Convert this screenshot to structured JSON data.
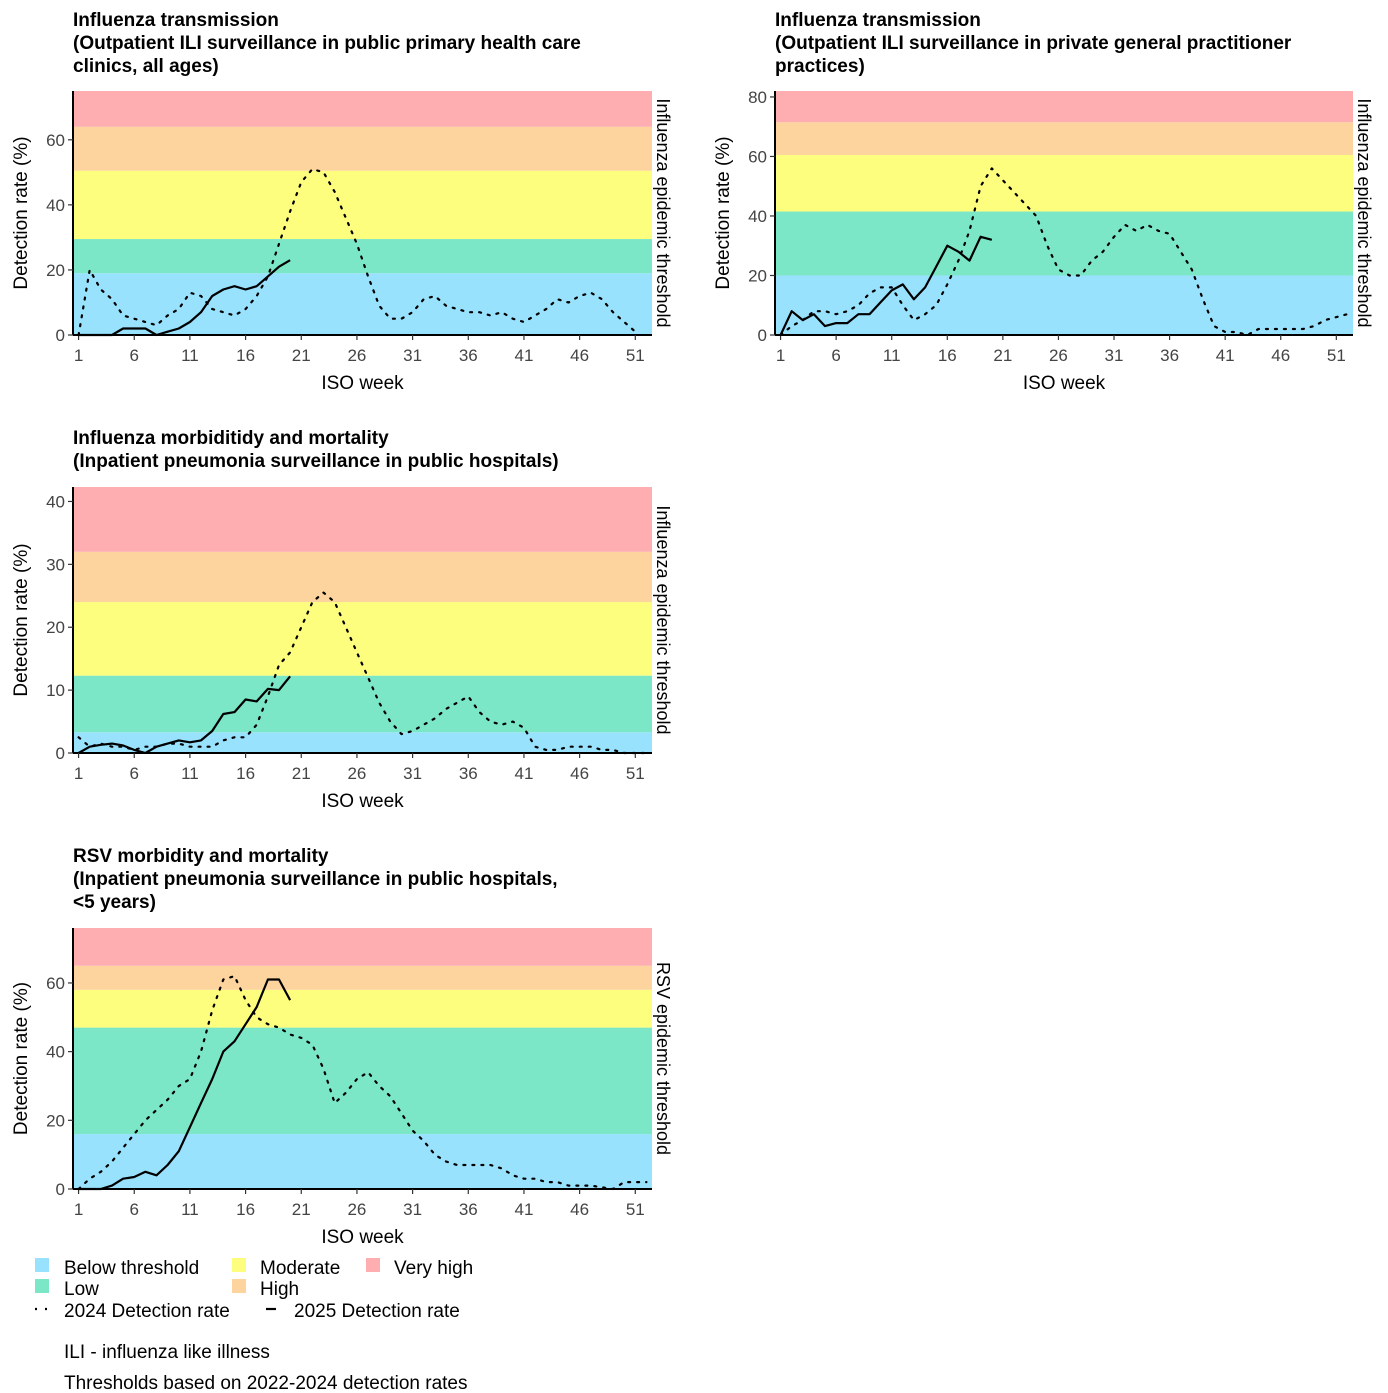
{
  "colors": {
    "below": "#99e2fe",
    "low": "#7ce7c7",
    "moderate": "#fefe7e",
    "high": "#fed49e",
    "very_high": "#fead b0"
  },
  "legend": {
    "below": "Below threshold",
    "low": "Low",
    "moderate": "Moderate",
    "high": "High",
    "very_high": "Very high",
    "s2024": "2024 Detection rate",
    "s2025": "2025 Detection rate"
  },
  "footnotes": {
    "ili": "ILI - influenza like illness",
    "thresholds": "Thresholds based on 2022-2024 detection rates"
  },
  "chart_data": [
    {
      "type": "line",
      "title_lines": [
        "Influenza transmission",
        "(Outpatient ILI surveillance in public primary health care",
        "clinics, all ages)"
      ],
      "xlabel": "ISO week",
      "ylabel": "Detection rate (%)",
      "side_label": "Influenza epidemic threshold",
      "xlim": [
        0.5,
        52.5
      ],
      "ylim": [
        0,
        75
      ],
      "x_ticks": [
        1,
        6,
        11,
        16,
        21,
        26,
        31,
        36,
        41,
        46,
        51
      ],
      "y_ticks": [
        0,
        20,
        40,
        60
      ],
      "bands": [
        0,
        19,
        29.5,
        50.5,
        64,
        75
      ],
      "series": [
        {
          "name": "2024 Detection rate",
          "style": "dotted",
          "x": [
            1,
            2,
            3,
            4,
            5,
            6,
            7,
            8,
            9,
            10,
            11,
            12,
            13,
            14,
            15,
            16,
            17,
            18,
            19,
            20,
            21,
            22,
            23,
            24,
            25,
            26,
            27,
            28,
            29,
            30,
            31,
            32,
            33,
            34,
            35,
            36,
            37,
            38,
            39,
            40,
            41,
            42,
            43,
            44,
            45,
            46,
            47,
            48,
            49,
            50,
            51
          ],
          "y": [
            0,
            20,
            14,
            11,
            6,
            5,
            4,
            3,
            6,
            8,
            13,
            12,
            8,
            7,
            6,
            8,
            12,
            18,
            28,
            38,
            47,
            51,
            50,
            44,
            36,
            28,
            18,
            9,
            5,
            5,
            7,
            11,
            12,
            9,
            8,
            7,
            7,
            6,
            7,
            5,
            4,
            6,
            8,
            11,
            10,
            12,
            13,
            11,
            7,
            4,
            1
          ]
        },
        {
          "name": "2025 Detection rate",
          "style": "solid",
          "x": [
            1,
            2,
            3,
            4,
            5,
            6,
            7,
            8,
            9,
            10,
            11,
            12,
            13,
            14,
            15,
            16,
            17,
            18,
            19,
            20
          ],
          "y": [
            0,
            0,
            0,
            0,
            2,
            2,
            2,
            0,
            1,
            2,
            4,
            7,
            12,
            14,
            15,
            14,
            15,
            18,
            21,
            23
          ]
        }
      ]
    },
    {
      "type": "line",
      "title_lines": [
        "Influenza transmission",
        "(Outpatient ILI surveillance in private general practitioner",
        "practices)"
      ],
      "xlabel": "ISO week",
      "ylabel": "Detection rate (%)",
      "side_label": "Influenza epidemic threshold",
      "xlim": [
        0.5,
        52.5
      ],
      "ylim": [
        0,
        82
      ],
      "x_ticks": [
        1,
        6,
        11,
        16,
        21,
        26,
        31,
        36,
        41,
        46,
        51
      ],
      "y_ticks": [
        0,
        20,
        40,
        60,
        80
      ],
      "bands": [
        0,
        20,
        41.5,
        60.5,
        71.5,
        82
      ],
      "series": [
        {
          "name": "2024 Detection rate",
          "style": "dotted",
          "x": [
            1,
            2,
            3,
            4,
            5,
            6,
            7,
            8,
            9,
            10,
            11,
            12,
            13,
            14,
            15,
            16,
            17,
            18,
            19,
            20,
            21,
            22,
            23,
            24,
            25,
            26,
            27,
            28,
            29,
            30,
            31,
            32,
            33,
            34,
            35,
            36,
            37,
            38,
            39,
            40,
            41,
            42,
            43,
            44,
            45,
            46,
            47,
            48,
            49,
            50,
            51,
            52
          ],
          "y": [
            0,
            3,
            5,
            8,
            8,
            7,
            8,
            10,
            14,
            16,
            16,
            10,
            5,
            7,
            10,
            17,
            25,
            35,
            50,
            56,
            52,
            48,
            44,
            40,
            30,
            22,
            20,
            20,
            25,
            28,
            33,
            37,
            35,
            37,
            35,
            34,
            28,
            22,
            12,
            3,
            1,
            1,
            0,
            2,
            2,
            2,
            2,
            2,
            3,
            5,
            6,
            7
          ]
        },
        {
          "name": "2025 Detection rate",
          "style": "solid",
          "x": [
            1,
            2,
            3,
            4,
            5,
            6,
            7,
            8,
            9,
            10,
            11,
            12,
            13,
            14,
            15,
            16,
            17,
            18,
            19,
            20
          ],
          "y": [
            0,
            8,
            5,
            7,
            3,
            4,
            4,
            7,
            7,
            11,
            15,
            17,
            12,
            16,
            23,
            30,
            28,
            25,
            33,
            32
          ]
        }
      ]
    },
    {
      "type": "line",
      "title_lines": [
        "Influenza morbiditidy and mortality",
        "(Inpatient pneumonia surveillance in public hospitals)"
      ],
      "xlabel": "ISO week",
      "ylabel": "Detection rate (%)",
      "side_label": "Influenza epidemic threshold",
      "xlim": [
        0.5,
        52.5
      ],
      "ylim": [
        0,
        42.3
      ],
      "x_ticks": [
        1,
        6,
        11,
        16,
        21,
        26,
        31,
        36,
        41,
        46,
        51
      ],
      "y_ticks": [
        0,
        10,
        20,
        30,
        40
      ],
      "bands": [
        0,
        3.3,
        12.3,
        24,
        32,
        42.3
      ],
      "series": [
        {
          "name": "2024 Detection rate",
          "style": "dotted",
          "x": [
            1,
            2,
            3,
            4,
            5,
            6,
            7,
            8,
            9,
            10,
            11,
            12,
            13,
            14,
            15,
            16,
            17,
            18,
            19,
            20,
            21,
            22,
            23,
            24,
            25,
            26,
            27,
            28,
            29,
            30,
            31,
            32,
            33,
            34,
            35,
            36,
            37,
            38,
            39,
            40,
            41,
            42,
            43,
            44,
            45,
            46,
            47,
            48,
            49,
            50,
            51,
            52
          ],
          "y": [
            2.5,
            1,
            1.5,
            1,
            1,
            0.5,
            1,
            1,
            1.5,
            1.5,
            1,
            1,
            1,
            2,
            2.5,
            2.5,
            4.5,
            9,
            14,
            16,
            20,
            24,
            25.5,
            24,
            20,
            16,
            12,
            8,
            5,
            3,
            3.5,
            4.5,
            5.5,
            7,
            8,
            9,
            6.5,
            5,
            4.5,
            5,
            4,
            1,
            0.5,
            0.5,
            1,
            1,
            1,
            0.5,
            0.5,
            0,
            0,
            0
          ]
        },
        {
          "name": "2025 Detection rate",
          "style": "solid",
          "x": [
            1,
            2,
            3,
            4,
            5,
            6,
            7,
            8,
            9,
            10,
            11,
            12,
            13,
            14,
            15,
            16,
            17,
            18,
            19,
            20
          ],
          "y": [
            0,
            1,
            1.3,
            1.5,
            1.2,
            0.5,
            0,
            1,
            1.5,
            2,
            1.7,
            2,
            3.5,
            6.2,
            6.5,
            8.5,
            8.2,
            10.2,
            10,
            12.2
          ]
        }
      ]
    },
    {
      "type": "line",
      "title_lines": [
        "RSV morbidity and mortality",
        "(Inpatient pneumonia surveillance in public hospitals,",
        "<5 years)"
      ],
      "xlabel": "ISO week",
      "ylabel": "Detection rate (%)",
      "side_label": "RSV epidemic threshold",
      "xlim": [
        0.5,
        52.5
      ],
      "ylim": [
        0,
        76
      ],
      "x_ticks": [
        1,
        6,
        11,
        16,
        21,
        26,
        31,
        36,
        41,
        46,
        51
      ],
      "y_ticks": [
        0,
        20,
        40,
        60
      ],
      "bands": [
        0,
        16,
        47,
        58,
        65,
        76
      ],
      "series": [
        {
          "name": "2024 Detection rate",
          "style": "dotted",
          "x": [
            1,
            2,
            3,
            4,
            5,
            6,
            7,
            8,
            9,
            10,
            11,
            12,
            13,
            14,
            15,
            16,
            17,
            18,
            19,
            20,
            21,
            22,
            23,
            24,
            25,
            26,
            27,
            28,
            29,
            30,
            31,
            32,
            33,
            34,
            35,
            36,
            37,
            38,
            39,
            40,
            41,
            42,
            43,
            44,
            45,
            46,
            47,
            48,
            49,
            50,
            51,
            52
          ],
          "y": [
            0,
            3,
            5,
            8,
            12,
            16,
            20,
            23,
            26,
            30,
            32,
            40,
            52,
            61,
            62,
            55,
            50,
            48,
            47,
            45,
            44,
            42,
            35,
            25,
            28,
            32,
            34,
            30,
            27,
            22,
            17,
            14,
            10,
            8,
            7,
            7,
            7,
            7,
            6,
            4,
            3,
            3,
            2,
            2,
            1,
            1,
            1,
            0.5,
            0,
            2,
            2,
            2
          ]
        },
        {
          "name": "2025 Detection rate",
          "style": "solid",
          "x": [
            1,
            2,
            3,
            4,
            5,
            6,
            7,
            8,
            9,
            10,
            11,
            12,
            13,
            14,
            15,
            16,
            17,
            18,
            19,
            20
          ],
          "y": [
            0,
            0,
            0,
            1,
            3,
            3.5,
            5,
            4,
            7,
            11,
            18,
            25,
            32,
            40,
            43,
            48,
            53,
            61,
            61,
            55
          ]
        }
      ]
    }
  ]
}
